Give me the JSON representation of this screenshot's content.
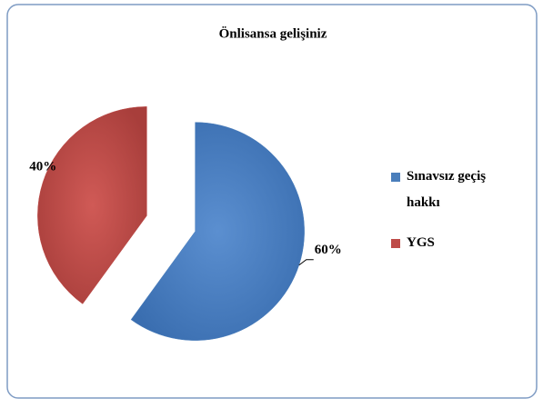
{
  "chart_data": {
    "type": "pie",
    "title": "Önlisansa gelişiniz",
    "categories": [
      "Sınavsız geçiş hakkı",
      "YGS"
    ],
    "values": [
      60,
      40
    ],
    "value_labels": [
      "60%",
      "40%"
    ],
    "colors": [
      "#4a7ebb",
      "#be4b48"
    ],
    "legend": "right",
    "explode": true
  }
}
